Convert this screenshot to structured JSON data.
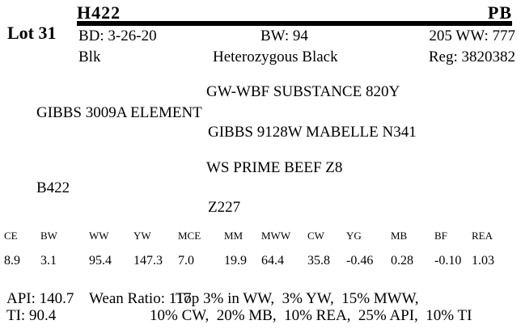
{
  "lot": {
    "label": "Lot 31"
  },
  "header": {
    "tattoo": "H422",
    "purity": "PB"
  },
  "info": {
    "birth_date": "BD: 3-26-20",
    "birth_weight": "BW: 94",
    "adj_205_wean_weight": "205 WW: 777",
    "color": "Blk",
    "coat_genetics": "Heterozygous Black",
    "registration": "Reg: 3820382"
  },
  "pedigree": {
    "paternal_grandsire": "GW-WBF SUBSTANCE 820Y",
    "sire": "GIBBS 3009A ELEMENT",
    "paternal_granddam": "GIBBS 9128W MABELLE N341",
    "maternal_grandsire": "WS PRIME BEEF Z8",
    "dam": "B422",
    "maternal_granddam": "Z227"
  },
  "epd_table": {
    "columns": [
      "CE",
      "BW",
      "WW",
      "YW",
      "MCE",
      "MM",
      "MWW",
      "CW",
      "YG",
      "MB",
      "BF",
      "REA"
    ],
    "values": [
      "8.9",
      "3.1",
      "95.4",
      "147.3",
      "7.0",
      "19.9",
      "64.4",
      "35.8",
      "-0.46",
      "0.28",
      "-0.10",
      "1.03"
    ]
  },
  "summary": {
    "api": "API: 140.7",
    "ti": "TI: 90.4",
    "wean_ratio": "Wean Ratio: 117",
    "rank_line1": "Top 3% in WW,  3% YW,  15% MWW,",
    "rank_line2": "10% CW,  20% MB,  10% REA,  25% API,  10% TI"
  },
  "colors": {
    "text": "#000000",
    "background": "#ffffff",
    "rule": "#000000"
  }
}
